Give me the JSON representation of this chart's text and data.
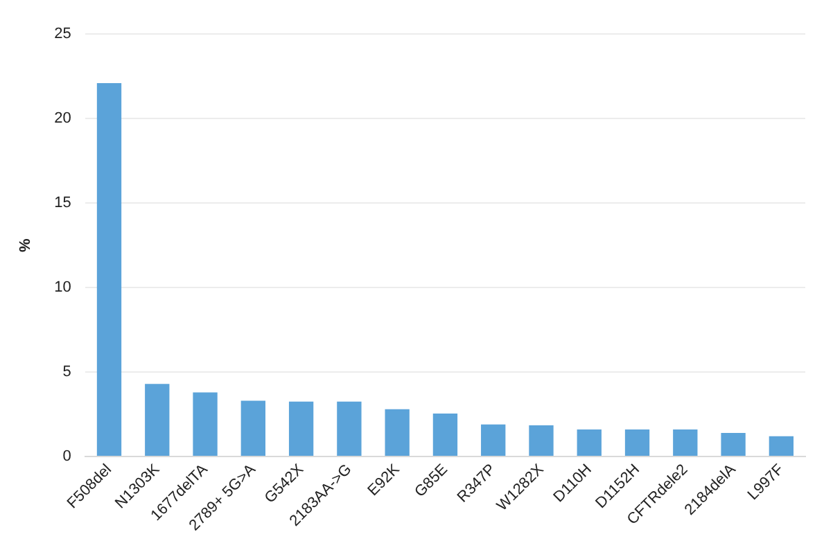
{
  "chart_data": {
    "type": "bar",
    "ylabel": "%",
    "categories": [
      "F508del",
      "N1303K",
      "1677delTA",
      "2789+ 5G>A",
      "G542X",
      "2183AA->G",
      "E92K",
      "G85E",
      "R347P",
      "W1282X",
      "D110H",
      "D1152H",
      "CFTRdele2",
      "2184delA",
      "L997F"
    ],
    "values": [
      22.1,
      4.3,
      3.8,
      3.3,
      3.25,
      3.25,
      2.8,
      2.55,
      1.9,
      1.85,
      1.6,
      1.6,
      1.6,
      1.4,
      1.2
    ],
    "color": "#5ba3d9",
    "ylim": [
      0,
      25
    ],
    "yticks": [
      0,
      5,
      10,
      15,
      20,
      25
    ],
    "grid": "y",
    "legend": false
  }
}
